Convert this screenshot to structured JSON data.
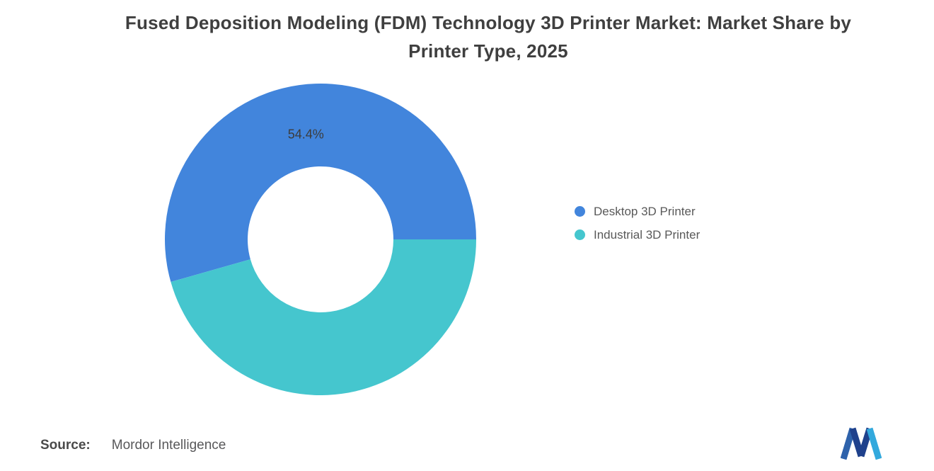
{
  "page": {
    "background": "#ffffff"
  },
  "title": "Fused Deposition Modeling (FDM) Technology 3D Printer Market: Market Share by Printer Type, 2025",
  "chart_data": {
    "type": "pie",
    "subtype": "donut",
    "title": "Fused Deposition Modeling (FDM) Technology 3D Printer Market: Market Share by Printer Type, 2025",
    "categories": [
      "Desktop 3D Printer",
      "Industrial 3D Printer"
    ],
    "values": [
      54.4,
      45.6
    ],
    "unit": "%",
    "colors": [
      "#4285DC",
      "#45C6CE"
    ],
    "data_labels": [
      "54.4%",
      ""
    ],
    "start_angle_deg_from_east_ccw": 0,
    "inner_radius_ratio": 0.47,
    "legend_position": "right",
    "grid": false
  },
  "legend": {
    "items": [
      {
        "label": "Desktop 3D Printer",
        "color": "#4285DC"
      },
      {
        "label": "Industrial 3D Printer",
        "color": "#45C6CE"
      }
    ]
  },
  "source": {
    "label": "Source:",
    "text": "Mordor Intelligence"
  },
  "branding": {
    "logo": "mordor-intelligence-logo",
    "stroke_colors": [
      "#2E62AB",
      "#1F418C",
      "#1F418C",
      "#33A9DD"
    ]
  }
}
